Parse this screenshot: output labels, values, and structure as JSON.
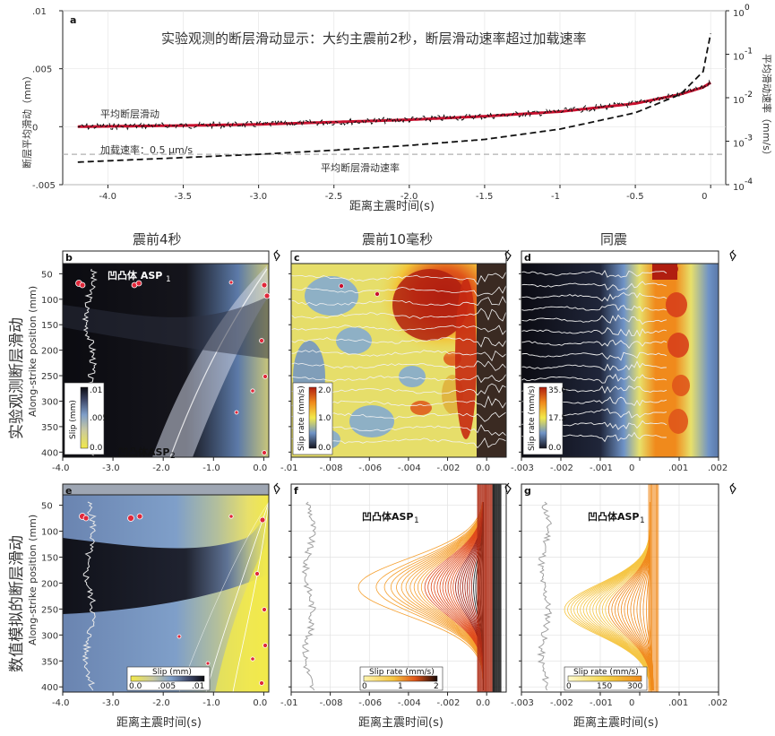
{
  "panel_a": {
    "letter": "a",
    "title": "实验观测的断层滑动显示：大约主震前2秒，断层滑动速率超过加载速率",
    "ylabel_left": "断层平均滑动（mm）",
    "ylabel_right": "平均滑动速率（mm/s）",
    "xlabel": "距离主震时间(s)",
    "label_slip": "平均断层滑动",
    "label_load": "加载速率：0.5 μm/s",
    "label_rate": "平均断层滑动速率",
    "xticks": [
      "-4.0",
      "-3.5",
      "-3.0",
      "-2.5",
      "-2.0",
      "-1.5",
      "-1",
      "-0.5",
      "0"
    ],
    "yticks_left": [
      "-.005",
      "0",
      ".005",
      ".01"
    ],
    "yticks_right_base": [
      "10",
      "10",
      "10",
      "10",
      "10"
    ],
    "yticks_right_exp": [
      "-4",
      "-3",
      "-2",
      "-1",
      "0"
    ]
  },
  "columns": {
    "col1": "震前4秒",
    "col2": "震前10毫秒",
    "col3": "同震"
  },
  "rows": {
    "row1": "实验观测断层滑动",
    "row2": "数值模拟的断层滑动",
    "ylabel": "Along-strike position (mm)"
  },
  "yticks_pos": [
    "50",
    "100",
    "150",
    "200",
    "250",
    "300",
    "350",
    "400"
  ],
  "panel_b": {
    "letter": "b",
    "asp1": "凹凸体 ASP",
    "asp1_sub": "1",
    "asp2": "凹凸体ASP",
    "asp2_sub": "2",
    "cbar_label": "Slip (mm)",
    "cbar_ticks": [
      ".01",
      ".005",
      "0.0"
    ],
    "xticks": [
      "-4.0",
      "-3.0",
      "-2.0",
      "-1.0",
      "0.0"
    ]
  },
  "panel_c": {
    "letter": "c",
    "cbar_label": "Slip rate (mm/s)",
    "cbar_ticks": [
      "2.0",
      "1.0",
      "0.0"
    ],
    "xticks": [
      "-.01",
      "-.008",
      "-.006",
      "-.004",
      "-.002",
      "0.0"
    ]
  },
  "panel_d": {
    "letter": "d",
    "cbar_label": "Slip rate (mm/s)",
    "cbar_ticks": [
      "35.0",
      "17.5",
      "0.0"
    ],
    "xticks": [
      "-.003",
      "-.002",
      "-.001",
      "0",
      ".001",
      ".002"
    ]
  },
  "panel_e": {
    "letter": "e",
    "cbar_label": "Slip (mm)",
    "cbar_ticks": [
      "0.0",
      ".005",
      ".01"
    ],
    "xticks": [
      "-4.0",
      "-3.0",
      "-2.0",
      "-1.0",
      "0.0"
    ],
    "xlabel": "距离主震时间(s)"
  },
  "panel_f": {
    "letter": "f",
    "asp": "凹凸体ASP",
    "asp_sub": "1",
    "cbar_label": "Slip rate (mm/s)",
    "cbar_ticks": [
      "0",
      "1",
      "2"
    ],
    "xticks": [
      "-.01",
      "-.008",
      "-.006",
      "-.004",
      "-.002",
      "0.0"
    ],
    "xlabel": "距离主震时间(s)"
  },
  "panel_g": {
    "letter": "g",
    "asp": "凹凸体ASP",
    "asp_sub": "1",
    "cbar_label": "Slip rate (mm/s)",
    "cbar_ticks": [
      "0",
      "150",
      "300"
    ],
    "xticks": [
      "-.003",
      "-.002",
      "-.001",
      "0",
      ".001",
      ".002"
    ],
    "xlabel": "距离主震时间(s)"
  },
  "colors": {
    "slip_curve": "#c8102e",
    "rate_curve": "#111111",
    "load_line": "#aaaaaa",
    "hot1": "#f5e642",
    "hot2": "#f08a1c",
    "hot3": "#c62a12",
    "cool": "#7fa8d6"
  },
  "chart_data": [
    {
      "type": "line",
      "panel": "a",
      "xlim": [
        -4.3,
        0.1
      ],
      "ylim_left": [
        -0.005,
        0.01
      ],
      "ylim_right_log": [
        0.0001,
        1
      ],
      "grid": true,
      "series": [
        {
          "name": "平均断层滑动",
          "axis": "left",
          "x": [
            -4.2,
            -3.5,
            -3.0,
            -2.5,
            -2.0,
            -1.5,
            -1.0,
            -0.5,
            -0.2,
            -0.05,
            0.0
          ],
          "y": [
            0.0,
            0.0001,
            0.0002,
            0.0004,
            0.0006,
            0.0009,
            0.0013,
            0.002,
            0.0028,
            0.0034,
            0.0038
          ]
        },
        {
          "name": "平均断层滑动速率",
          "axis": "right",
          "x": [
            -4.2,
            -3.5,
            -3.0,
            -2.5,
            -2.0,
            -1.5,
            -1.0,
            -0.5,
            -0.2,
            -0.05,
            0.0
          ],
          "y": [
            0.00033,
            0.00042,
            0.0005,
            0.00062,
            0.0008,
            0.0011,
            0.0019,
            0.0045,
            0.012,
            0.04,
            0.3
          ]
        },
        {
          "name": "加载速率：0.5 μm/s",
          "axis": "right",
          "x": [
            -4.3,
            0.1
          ],
          "y": [
            0.0005,
            0.0005
          ]
        }
      ]
    },
    {
      "type": "heatmap",
      "panel": "b",
      "xlim": [
        -4.0,
        0.1
      ],
      "ylim": [
        30,
        410
      ],
      "colorbar": {
        "label": "Slip (mm)",
        "range": [
          0.0,
          0.01
        ]
      }
    },
    {
      "type": "heatmap",
      "panel": "c",
      "xlim": [
        -0.01,
        0.001
      ],
      "ylim": [
        30,
        410
      ],
      "colorbar": {
        "label": "Slip rate (mm/s)",
        "range": [
          0.0,
          2.0
        ]
      }
    },
    {
      "type": "heatmap",
      "panel": "d",
      "xlim": [
        -0.003,
        0.002
      ],
      "ylim": [
        30,
        410
      ],
      "colorbar": {
        "label": "Slip rate (mm/s)",
        "range": [
          0.0,
          35.0
        ]
      }
    },
    {
      "type": "heatmap",
      "panel": "e",
      "xlim": [
        -4.0,
        0.1
      ],
      "ylim": [
        30,
        410
      ],
      "colorbar": {
        "label": "Slip (mm)",
        "range": [
          0.0,
          0.01
        ]
      }
    },
    {
      "type": "line",
      "panel": "f",
      "xlim": [
        -0.01,
        0.001
      ],
      "ylim": [
        30,
        410
      ],
      "colorbar": {
        "label": "Slip rate (mm/s)",
        "range": [
          0,
          2
        ]
      }
    },
    {
      "type": "line",
      "panel": "g",
      "xlim": [
        -0.003,
        0.002
      ],
      "ylim": [
        30,
        410
      ],
      "colorbar": {
        "label": "Slip rate (mm/s)",
        "range": [
          0,
          300
        ]
      }
    }
  ]
}
